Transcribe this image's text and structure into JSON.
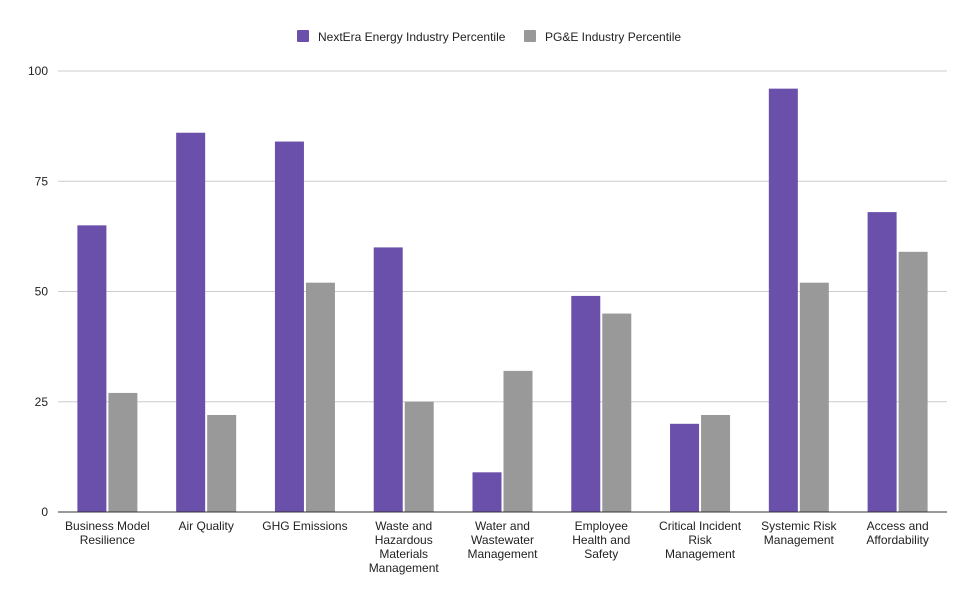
{
  "chart_data": {
    "type": "bar",
    "title": "",
    "xlabel": "",
    "ylabel": "",
    "ylim": [
      0,
      100
    ],
    "yticks": [
      0,
      25,
      50,
      75,
      100
    ],
    "grid": true,
    "legend_position": "top-center",
    "categories": [
      [
        "Business Model",
        "Resilience"
      ],
      [
        "Air Quality"
      ],
      [
        "GHG Emissions"
      ],
      [
        "Waste and",
        "Hazardous",
        "Materials",
        "Management"
      ],
      [
        "Water and",
        "Wastewater",
        "Management"
      ],
      [
        "Employee",
        "Health and",
        "Safety"
      ],
      [
        "Critical Incident",
        "Risk",
        "Management"
      ],
      [
        "Systemic Risk",
        "Management"
      ],
      [
        "Access and",
        "Affordability"
      ]
    ],
    "series": [
      {
        "name": "NextEra Energy Industry Percentile",
        "color": "#6a4fab",
        "values": [
          65,
          86,
          84,
          60,
          9,
          49,
          20,
          96,
          68
        ]
      },
      {
        "name": "PG&E Industry Percentile",
        "color": "#999999",
        "values": [
          27,
          22,
          52,
          25,
          32,
          45,
          22,
          52,
          59
        ]
      }
    ]
  }
}
